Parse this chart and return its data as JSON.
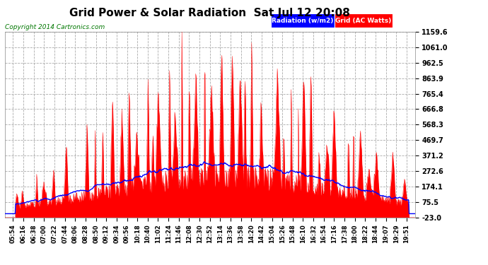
{
  "title": "Grid Power & Solar Radiation  Sat Jul 12 20:08",
  "copyright": "Copyright 2014 Cartronics.com",
  "legend_radiation": "Radiation (w/m2)",
  "legend_grid": "Grid (AC Watts)",
  "yticks": [
    -23.0,
    75.5,
    174.1,
    272.6,
    371.2,
    469.7,
    568.3,
    666.8,
    765.4,
    863.9,
    962.5,
    1061.0,
    1159.6
  ],
  "ymin": -23.0,
  "ymax": 1159.6,
  "background_color": "#ffffff",
  "plot_bg_color": "#ffffff",
  "grid_color": "#aaaaaa",
  "radiation_color": "#0000ff",
  "grid_ac_color": "#ff0000",
  "title_color": "#000000",
  "tick_color": "#000000",
  "copyright_color": "#000000",
  "xtick_labels": [
    "05:54",
    "06:16",
    "06:38",
    "07:00",
    "07:22",
    "07:44",
    "08:06",
    "08:28",
    "08:50",
    "09:12",
    "09:34",
    "09:56",
    "10:18",
    "10:40",
    "11:02",
    "11:24",
    "11:46",
    "12:08",
    "12:30",
    "12:52",
    "13:14",
    "13:36",
    "13:58",
    "14:20",
    "14:42",
    "15:04",
    "15:26",
    "15:48",
    "16:10",
    "16:32",
    "16:54",
    "17:16",
    "17:38",
    "18:00",
    "18:22",
    "18:44",
    "19:07",
    "19:29",
    "19:51"
  ]
}
